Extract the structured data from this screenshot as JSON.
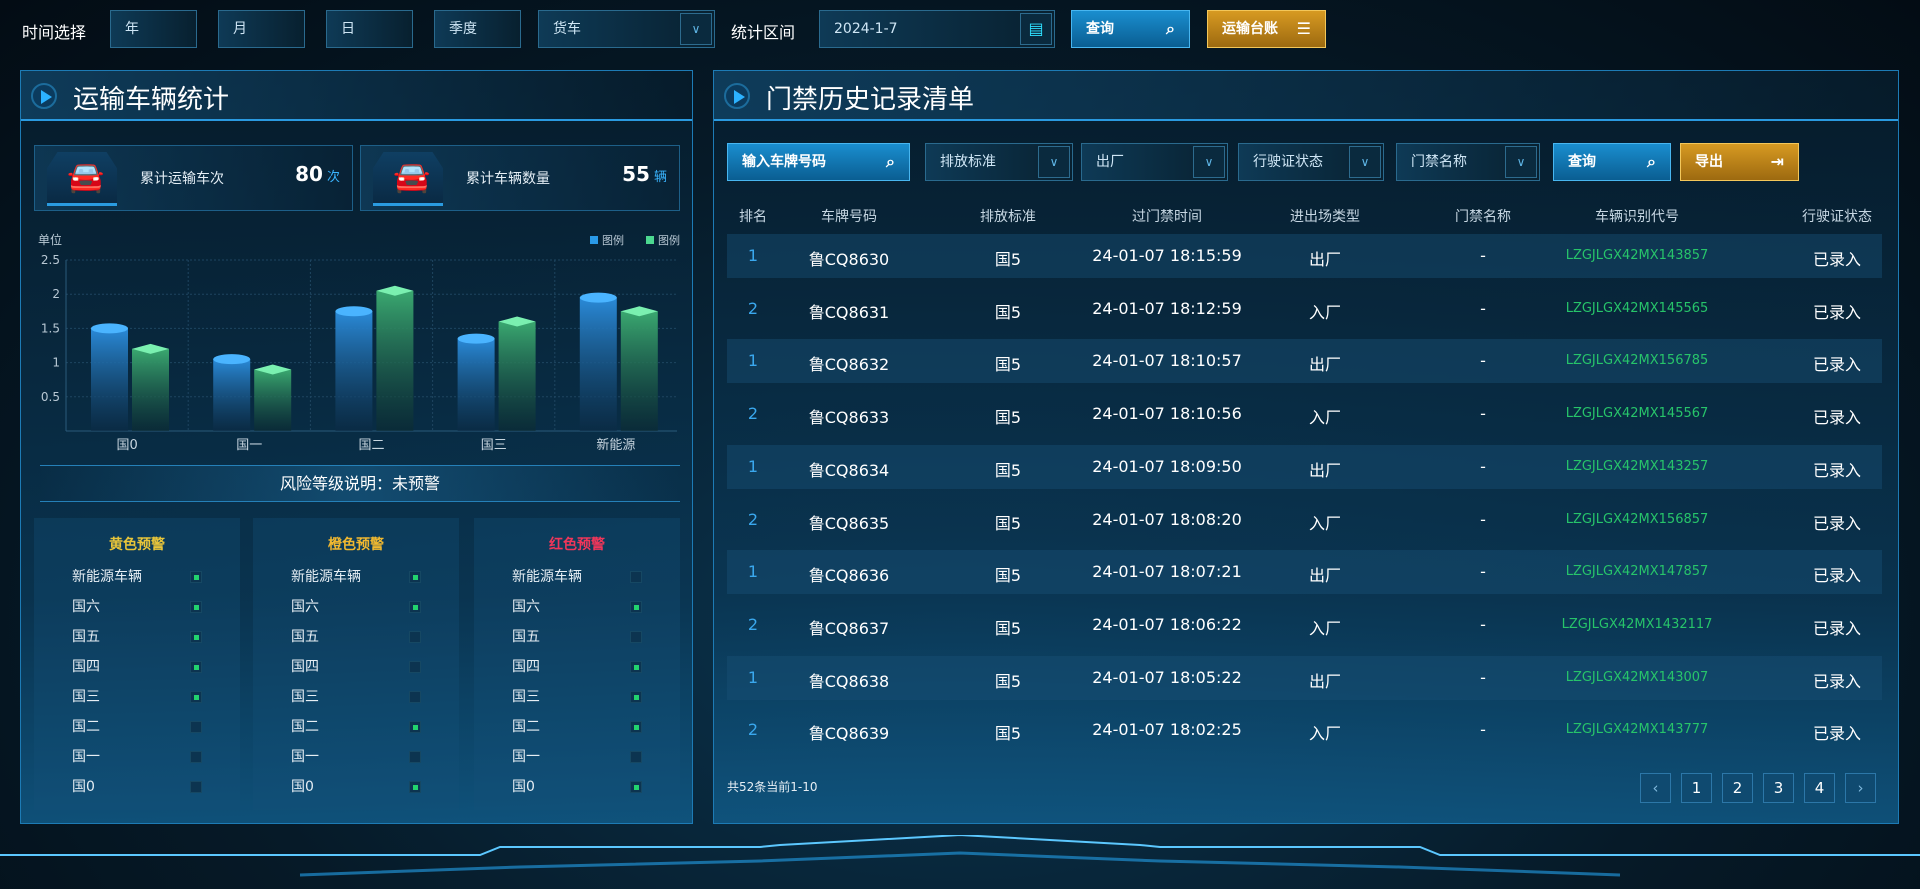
{
  "topbar": {
    "time_label": "时间选择",
    "year": "年",
    "month": "月",
    "day": "日",
    "quarter": "季度",
    "vehicle_type": "货车",
    "range_label": "统计区间",
    "date": "2024-1-7",
    "query": "查询",
    "ledger": "运输台账"
  },
  "left": {
    "title": "运输车辆统计",
    "stats": [
      {
        "label": "累计运输车次",
        "value": "80",
        "unit": "次"
      },
      {
        "label": "累计车辆数量",
        "value": "55",
        "unit": "辆"
      }
    ],
    "risk_label": "风险等级说明：未预警",
    "warnings": [
      {
        "title": "黄色预警",
        "color": "#e8c53a",
        "items": [
          {
            "label": "新能源车辆",
            "on": true
          },
          {
            "label": "国六",
            "on": true
          },
          {
            "label": "国五",
            "on": true
          },
          {
            "label": "国四",
            "on": true
          },
          {
            "label": "国三",
            "on": true
          },
          {
            "label": "国二",
            "on": false
          },
          {
            "label": "国一",
            "on": false
          },
          {
            "label": "国0",
            "on": false
          }
        ]
      },
      {
        "title": "橙色预警",
        "color": "#f0b830",
        "items": [
          {
            "label": "新能源车辆",
            "on": true
          },
          {
            "label": "国六",
            "on": true
          },
          {
            "label": "国五",
            "on": false
          },
          {
            "label": "国四",
            "on": false
          },
          {
            "label": "国三",
            "on": false
          },
          {
            "label": "国二",
            "on": true
          },
          {
            "label": "国一",
            "on": false
          },
          {
            "label": "国0",
            "on": true
          }
        ]
      },
      {
        "title": "红色预警",
        "color": "#f0365a",
        "items": [
          {
            "label": "新能源车辆",
            "on": false
          },
          {
            "label": "国六",
            "on": true
          },
          {
            "label": "国五",
            "on": false
          },
          {
            "label": "国四",
            "on": true
          },
          {
            "label": "国三",
            "on": true
          },
          {
            "label": "国二",
            "on": true
          },
          {
            "label": "国一",
            "on": false
          },
          {
            "label": "国0",
            "on": true
          }
        ]
      }
    ]
  },
  "chart_data": {
    "type": "bar",
    "ylabel": "单位",
    "categories": [
      "国0",
      "国一",
      "国二",
      "国三",
      "新能源"
    ],
    "ylim": [
      0,
      2.5
    ],
    "yticks": [
      "0.5",
      "1",
      "1.5",
      "2",
      "2.5"
    ],
    "grid": true,
    "legend_position": "top-right",
    "series": [
      {
        "name": "图例",
        "color": "#2a9ae8",
        "values": [
          1.5,
          1.05,
          1.75,
          1.35,
          1.95
        ]
      },
      {
        "name": "图例",
        "color": "#4cd890",
        "values": [
          1.2,
          0.9,
          2.05,
          1.6,
          1.75
        ]
      }
    ]
  },
  "right": {
    "title": "门禁历史记录清单",
    "filters": {
      "plate_placeholder": "输入车牌号码",
      "emission": "排放标准",
      "direction": "出厂",
      "license_status": "行驶证状态",
      "gate_name": "门禁名称",
      "query": "查询",
      "export": "导出"
    },
    "columns": [
      "排名",
      "车牌号码",
      "排放标准",
      "过门禁时间",
      "进出场类型",
      "门禁名称",
      "车辆识别代号",
      "行驶证状态"
    ],
    "rows": [
      [
        "1",
        "鲁CQ8630",
        "国5",
        "24-01-07 18:15:59",
        "出厂",
        "-",
        "LZGJLGX42MX143857",
        "已录入"
      ],
      [
        "2",
        "鲁CQ8631",
        "国5",
        "24-01-07 18:12:59",
        "入厂",
        "-",
        "LZGJLGX42MX145565",
        "已录入"
      ],
      [
        "1",
        "鲁CQ8632",
        "国5",
        "24-01-07 18:10:57",
        "出厂",
        "-",
        "LZGJLGX42MX156785",
        "已录入"
      ],
      [
        "2",
        "鲁CQ8633",
        "国5",
        "24-01-07 18:10:56",
        "入厂",
        "-",
        "LZGJLGX42MX145567",
        "已录入"
      ],
      [
        "1",
        "鲁CQ8634",
        "国5",
        "24-01-07 18:09:50",
        "出厂",
        "-",
        "LZGJLGX42MX143257",
        "已录入"
      ],
      [
        "2",
        "鲁CQ8635",
        "国5",
        "24-01-07 18:08:20",
        "入厂",
        "-",
        "LZGJLGX42MX156857",
        "已录入"
      ],
      [
        "1",
        "鲁CQ8636",
        "国5",
        "24-01-07 18:07:21",
        "出厂",
        "-",
        "LZGJLGX42MX147857",
        "已录入"
      ],
      [
        "2",
        "鲁CQ8637",
        "国5",
        "24-01-07 18:06:22",
        "入厂",
        "-",
        "LZGJLGX42MX1432117",
        "已录入"
      ],
      [
        "1",
        "鲁CQ8638",
        "国5",
        "24-01-07 18:05:22",
        "出厂",
        "-",
        "LZGJLGX42MX143007",
        "已录入"
      ],
      [
        "2",
        "鲁CQ8639",
        "国5",
        "24-01-07 18:02:25",
        "入厂",
        "-",
        "LZGJLGX42MX143777",
        "已录入"
      ]
    ],
    "footer": "共52条当前1-10",
    "pagination": {
      "prev": "‹",
      "pages": [
        "1",
        "2",
        "3",
        "4"
      ],
      "next": "›"
    }
  }
}
